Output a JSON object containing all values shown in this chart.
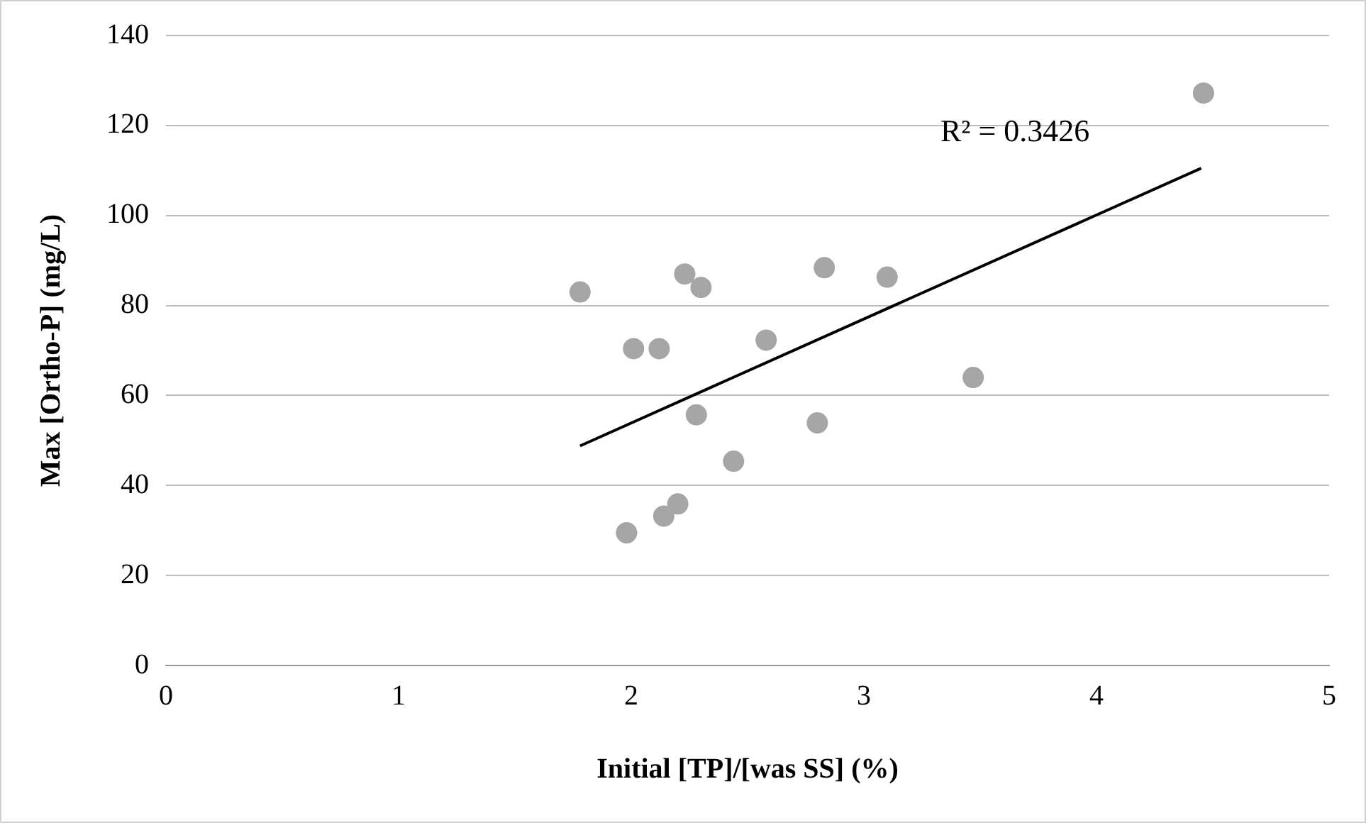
{
  "chart_data": {
    "type": "scatter",
    "xlabel": "Initial [TP]/[was SS] (%)",
    "ylabel": "Max [Ortho-P] (mg/L)",
    "xlim": [
      0,
      5
    ],
    "xticks": [
      0,
      1,
      2,
      3,
      4,
      5
    ],
    "ylim": [
      0,
      140
    ],
    "yticks": [
      0,
      20,
      40,
      60,
      80,
      100,
      120,
      140
    ],
    "grid": "y",
    "legend": false,
    "series": [
      {
        "marker": "circle",
        "color": "#a6a6a6",
        "x": [
          1.78,
          2.23,
          2.3,
          2.83,
          3.1,
          2.01,
          2.12,
          2.58,
          3.47,
          2.28,
          2.8,
          2.44,
          2.2,
          2.14,
          1.98,
          4.46
        ],
        "values": [
          83,
          87,
          84,
          88.4,
          86.3,
          70.4,
          70.4,
          72.3,
          64,
          55.7,
          53.9,
          45.4,
          35.9,
          33.2,
          29.5,
          127.2
        ]
      },
      {
        "type": "line",
        "color": "#000000",
        "x": [
          1.78,
          4.45
        ],
        "values": [
          48.8,
          110.5
        ]
      }
    ],
    "annotations": [
      "R² = 0.3426"
    ]
  }
}
